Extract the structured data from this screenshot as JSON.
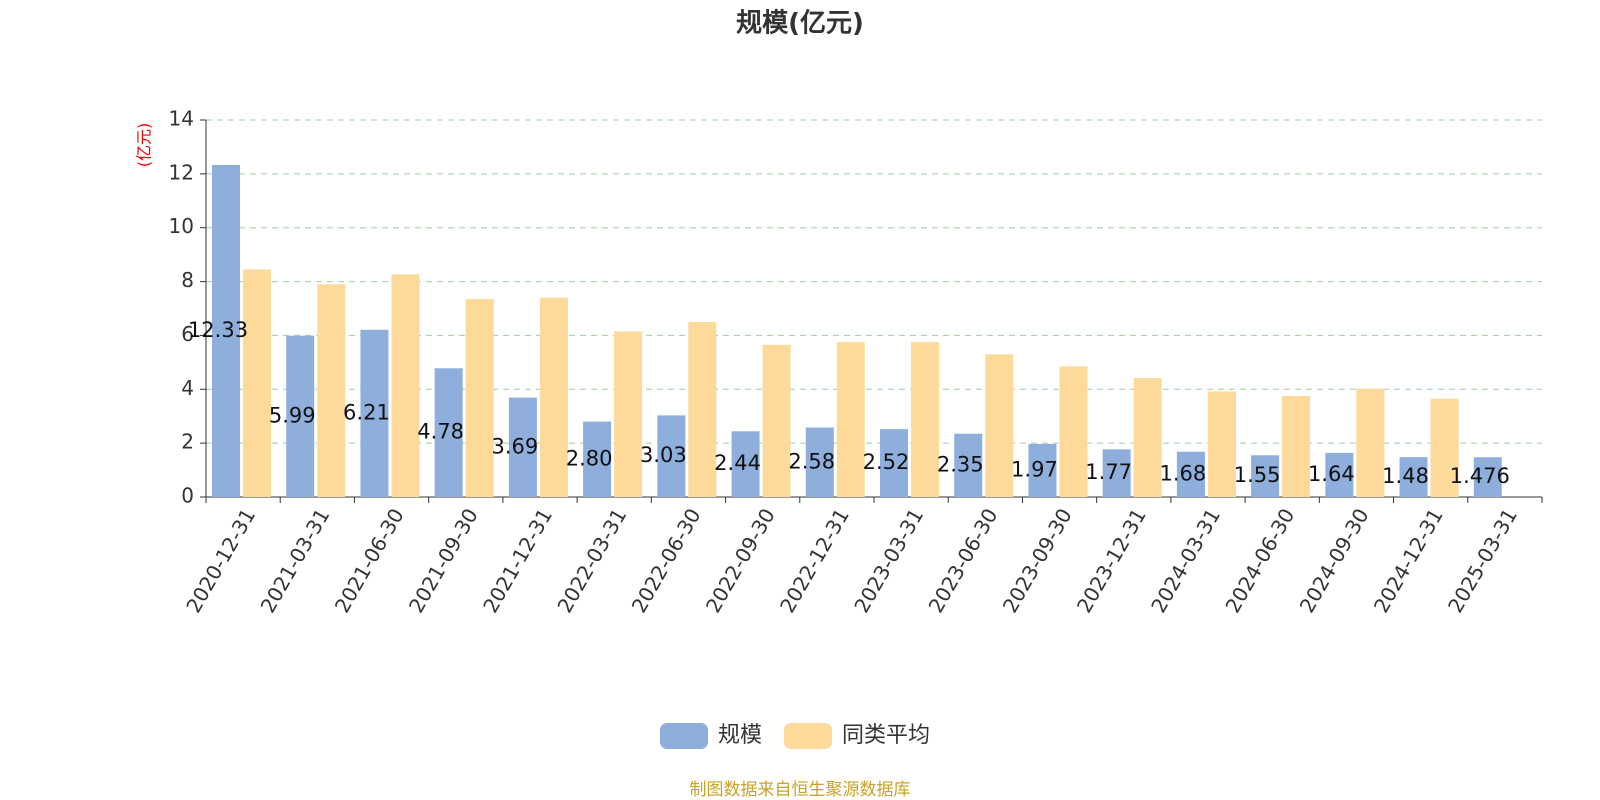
{
  "chart_data": {
    "type": "bar",
    "title": "规模(亿元)",
    "y_axis_label": "(亿元)",
    "categories": [
      "2020-12-31",
      "2021-03-31",
      "2021-06-30",
      "2021-09-30",
      "2021-12-31",
      "2022-03-31",
      "2022-06-30",
      "2022-09-30",
      "2022-12-31",
      "2023-03-31",
      "2023-06-30",
      "2023-09-30",
      "2023-12-31",
      "2024-03-31",
      "2024-06-30",
      "2024-09-30",
      "2024-12-31",
      "2025-03-31"
    ],
    "series": [
      {
        "name": "规模",
        "color": "#8eaedc",
        "values": [
          12.33,
          5.99,
          6.21,
          4.78,
          3.69,
          2.8,
          3.03,
          2.44,
          2.58,
          2.52,
          2.35,
          1.97,
          1.77,
          1.68,
          1.55,
          1.64,
          1.48,
          1.476
        ],
        "value_labels": [
          "12.33",
          "5.99",
          "6.21",
          "4.78",
          "3.69",
          "2.80",
          "3.03",
          "2.44",
          "2.58",
          "2.52",
          "2.35",
          "1.97",
          "1.77",
          "1.68",
          "1.55",
          "1.64",
          "1.48",
          "1.476"
        ]
      },
      {
        "name": "同类平均",
        "color": "#fdd99a",
        "values": [
          8.45,
          7.9,
          8.27,
          7.35,
          7.4,
          6.15,
          6.5,
          5.65,
          5.75,
          5.75,
          5.3,
          4.85,
          4.42,
          3.92,
          3.75,
          4.02,
          3.65,
          null
        ]
      }
    ],
    "ylim": [
      0,
      14
    ],
    "yticks": [
      0,
      2,
      4,
      6,
      8,
      10,
      12,
      14
    ],
    "grid": true,
    "legend": "bottom",
    "source": "制图数据来自恒生聚源数据库"
  }
}
